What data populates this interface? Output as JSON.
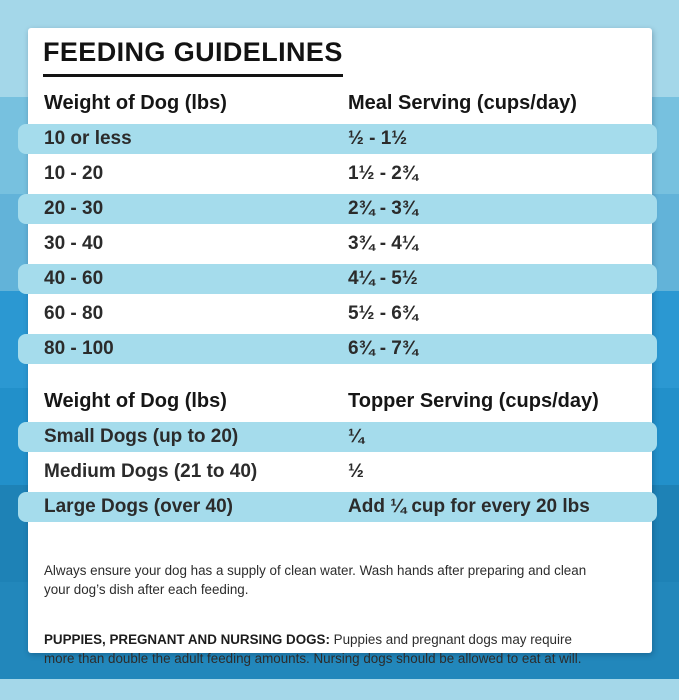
{
  "title": "FEEDING GUIDELINES",
  "meal_table": {
    "col1_header": "Weight of Dog (lbs)",
    "col2_header": "Meal Serving (cups/day)",
    "rows": [
      {
        "weight": "10 or less",
        "serving": "½ - 1½"
      },
      {
        "weight": "10 - 20",
        "serving": "1½ - 2¾"
      },
      {
        "weight": "20 - 30",
        "serving": "2¾ - 3¾"
      },
      {
        "weight": "30 - 40",
        "serving": "3¾ - 4¼"
      },
      {
        "weight": "40 - 60",
        "serving": "4¼ - 5½"
      },
      {
        "weight": "60 - 80",
        "serving": "5½ - 6¾"
      },
      {
        "weight": "80 - 100",
        "serving": "6¾ - 7¾"
      }
    ]
  },
  "topper_table": {
    "col1_header": "Weight of Dog (lbs)",
    "col2_header": "Topper Serving (cups/day)",
    "rows": [
      {
        "weight": "Small Dogs (up to 20)",
        "serving": "¼"
      },
      {
        "weight": "Medium Dogs (21 to 40)",
        "serving": "½"
      },
      {
        "weight": "Large Dogs (over 40)",
        "serving": "Add ¼ cup for every 20 lbs"
      }
    ]
  },
  "notes": {
    "water_note": "Always ensure your dog has a supply of clean water. Wash hands after preparing and clean\nyour dog’s dish after each feeding.",
    "puppies_label": "PUPPIES, PREGNANT AND NURSING DOGS:",
    "puppies_text": " Puppies and pregnant dogs may require\nmore than double the adult feeding amounts. Nursing dogs should be allowed to eat at will."
  },
  "colors": {
    "card_background": "#ffffff",
    "row_highlight": "#a5dcec",
    "title_text": "#131313",
    "body_text": "#2b2b2b",
    "background_bands": [
      "#a4d7e9",
      "#77c1df",
      "#62b3d9",
      "#2b98d2",
      "#2290ca",
      "#1e82b6",
      "#2287bb"
    ]
  }
}
